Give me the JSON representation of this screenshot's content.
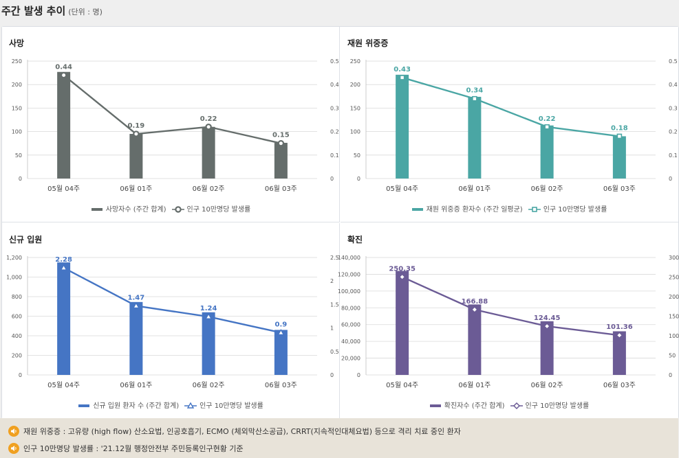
{
  "header": {
    "title": "주간 발생 추이",
    "unit": "(단위 : 명)"
  },
  "panels": [
    {
      "title": "사망",
      "color": "#656d6b",
      "marker": "circle",
      "chart_data": {
        "type": "bar",
        "categories": [
          "05월 04주",
          "06월 01주",
          "06월 02주",
          "06월 03주"
        ],
        "series": [
          {
            "name": "사망자수 (주간 합계)",
            "type": "bar",
            "axis": "left",
            "values": [
              227,
              95,
              110,
              76
            ]
          },
          {
            "name": "인구 10만명당 발생률",
            "type": "line",
            "axis": "right",
            "values": [
              0.44,
              0.19,
              0.22,
              0.15
            ],
            "labels": [
              "0.44",
              "0.19",
              "0.22",
              "0.15"
            ]
          }
        ],
        "y_left": {
          "min": 0,
          "max": 250,
          "ticks": [
            0,
            50,
            100,
            150,
            200,
            250
          ],
          "tick_labels": [
            "0",
            "50",
            "100",
            "150",
            "200",
            "250"
          ]
        },
        "y_right": {
          "min": 0,
          "max": 0.5,
          "ticks": [
            0,
            0.1,
            0.2,
            0.3,
            0.4,
            0.5
          ],
          "tick_labels": [
            "0",
            "0.1",
            "0.2",
            "0.3",
            "0.4",
            "0.5"
          ]
        },
        "legend": "bottom"
      }
    },
    {
      "title": "재원 위중증",
      "color": "#4aa6a4",
      "marker": "square",
      "chart_data": {
        "type": "bar",
        "categories": [
          "05월 04주",
          "06월 01주",
          "06월 02주",
          "06월 03주"
        ],
        "series": [
          {
            "name": "재원 위중증 환자수 (주간 일평균)",
            "type": "bar",
            "axis": "left",
            "values": [
              221,
              174,
              113,
              90
            ]
          },
          {
            "name": "인구 10만명당 발생률",
            "type": "line",
            "axis": "right",
            "values": [
              0.43,
              0.34,
              0.22,
              0.18
            ],
            "labels": [
              "0.43",
              "0.34",
              "0.22",
              "0.18"
            ]
          }
        ],
        "y_left": {
          "min": 0,
          "max": 250,
          "ticks": [
            0,
            50,
            100,
            150,
            200,
            250
          ],
          "tick_labels": [
            "0",
            "50",
            "100",
            "150",
            "200",
            "250"
          ]
        },
        "y_right": {
          "min": 0,
          "max": 0.5,
          "ticks": [
            0,
            0.1,
            0.2,
            0.3,
            0.4,
            0.5
          ],
          "tick_labels": [
            "0",
            "0.1",
            "0.2",
            "0.3",
            "0.4",
            "0.5"
          ]
        },
        "legend": "bottom"
      }
    },
    {
      "title": "신규 입원",
      "color": "#4575c4",
      "marker": "triangle",
      "chart_data": {
        "type": "bar",
        "categories": [
          "05월 04주",
          "06월 01주",
          "06월 02주",
          "06월 03주"
        ],
        "series": [
          {
            "name": "신규 입원 환자 수 (주간 합계)",
            "type": "bar",
            "axis": "left",
            "values": [
              1150,
              745,
              640,
              460
            ]
          },
          {
            "name": "인구 10만명당 발생률",
            "type": "line",
            "axis": "right",
            "values": [
              2.28,
              1.47,
              1.24,
              0.9
            ],
            "labels": [
              "2.28",
              "1.47",
              "1.24",
              "0.9"
            ]
          }
        ],
        "y_left": {
          "min": 0,
          "max": 1200,
          "ticks": [
            0,
            200,
            400,
            600,
            800,
            1000,
            1200
          ],
          "tick_labels": [
            "0",
            "200",
            "400",
            "600",
            "800",
            "1,000",
            "1,200"
          ]
        },
        "y_right": {
          "min": 0,
          "max": 2.5,
          "ticks": [
            0,
            0.5,
            1,
            1.5,
            2,
            2.5
          ],
          "tick_labels": [
            "0",
            "0.5",
            "1",
            "1.5",
            "2",
            "2.5"
          ]
        },
        "legend": "bottom"
      }
    },
    {
      "title": "확진",
      "color": "#6b5b95",
      "marker": "diamond",
      "chart_data": {
        "type": "bar",
        "categories": [
          "05월 04주",
          "06월 01주",
          "06월 02주",
          "06월 03주"
        ],
        "series": [
          {
            "name": "확진자수 (주간 합계)",
            "type": "bar",
            "axis": "left",
            "values": [
              124000,
              84000,
              64000,
              52000
            ]
          },
          {
            "name": "인구 10만명당 발생률",
            "type": "line",
            "axis": "right",
            "values": [
              250.35,
              166.88,
              124.45,
              101.36
            ],
            "labels": [
              "250.35",
              "166.88",
              "124.45",
              "101.36"
            ]
          }
        ],
        "y_left": {
          "min": 0,
          "max": 140000,
          "ticks": [
            0,
            20000,
            40000,
            60000,
            80000,
            100000,
            120000,
            140000
          ],
          "tick_labels": [
            "0",
            "20,000",
            "40,000",
            "60,000",
            "80,000",
            "100,000",
            "120,000",
            "140,000"
          ]
        },
        "y_right": {
          "min": 0,
          "max": 300,
          "ticks": [
            0,
            50,
            100,
            150,
            200,
            250,
            300
          ],
          "tick_labels": [
            "0",
            "50",
            "100",
            "150",
            "200",
            "250",
            "300"
          ]
        },
        "legend": "bottom"
      }
    }
  ],
  "notes": [
    {
      "icon": "speaker-icon",
      "text": "재원 위중증 : 고유량 (high flow) 산소요법, 인공호흡기, ECMO (체외막산소공급), CRRT(지속적인대체요법) 등으로 격리 치료 중인 환자"
    },
    {
      "icon": "speaker-icon",
      "text": "인구 10만명당 발생률 : '21.12월 행정안전부 주민등록인구현황 기준"
    }
  ],
  "colors": {
    "footer_bg": "#e8e3d9",
    "icon": "#f0a020",
    "gridline": "#d9d9d9"
  }
}
